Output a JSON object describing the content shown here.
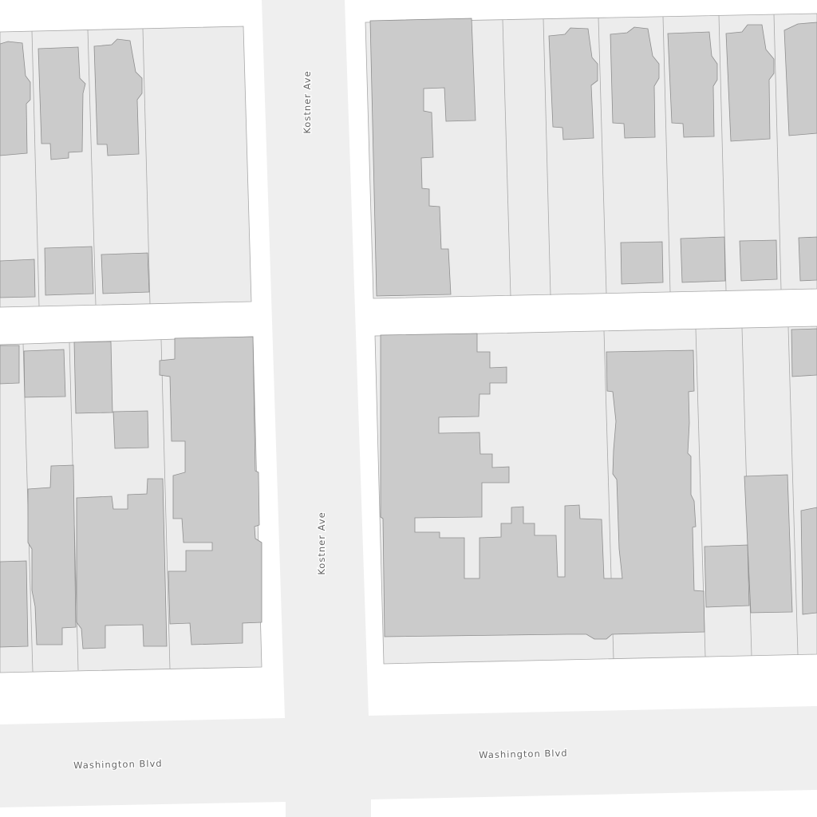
{
  "map": {
    "streets": [
      {
        "name": "Kostner Ave",
        "orientation": "vertical"
      },
      {
        "name": "Washington Blvd",
        "orientation": "horizontal"
      }
    ],
    "labels": {
      "kostner_top": "Kostner Ave",
      "kostner_bottom": "Kostner Ave",
      "washington_left": "Washington Blvd",
      "washington_right": "Washington Blvd"
    },
    "colors": {
      "street": "#efefef",
      "block": "#ffffff",
      "parcel": "#ececec",
      "building": "#cbcbcb"
    }
  }
}
